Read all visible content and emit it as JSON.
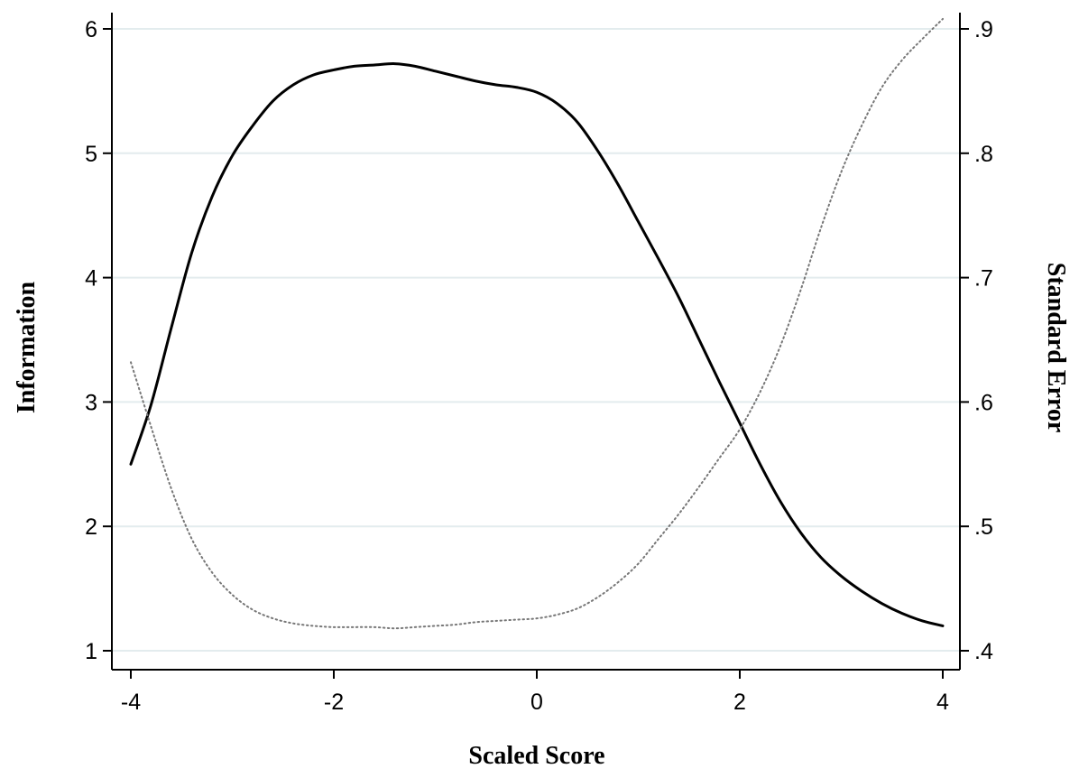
{
  "chart_data": {
    "type": "line",
    "title": "",
    "xlabel": "Scaled Score",
    "ylabel_left": "Information",
    "ylabel_right": "Standard Error",
    "xlim": [
      -4,
      4
    ],
    "ylim_left": [
      1,
      6
    ],
    "ylim_right": [
      0.4,
      0.9
    ],
    "xticks": [
      -4,
      -2,
      0,
      2,
      4
    ],
    "xtick_labels": [
      "-4",
      "-2",
      "0",
      "2",
      "4"
    ],
    "yticks_left": [
      1,
      2,
      3,
      4,
      5,
      6
    ],
    "ytick_labels_left": [
      "1",
      "2",
      "3",
      "4",
      "5",
      "6"
    ],
    "yticks_right": [
      0.4,
      0.5,
      0.6,
      0.7,
      0.8,
      0.9
    ],
    "ytick_labels_right": [
      ".4",
      ".5",
      ".6",
      ".7",
      ".8",
      ".9"
    ],
    "grid": true,
    "legend": "none",
    "series": [
      {
        "axis": "left",
        "style": "solid",
        "color": "#000000",
        "x": [
          -4,
          -3.8,
          -3.6,
          -3.4,
          -3.2,
          -3.0,
          -2.8,
          -2.6,
          -2.4,
          -2.2,
          -2.0,
          -1.8,
          -1.6,
          -1.4,
          -1.2,
          -1.0,
          -0.8,
          -0.6,
          -0.4,
          -0.2,
          0.0,
          0.2,
          0.4,
          0.6,
          0.8,
          1.0,
          1.2,
          1.4,
          1.6,
          1.8,
          2.0,
          2.2,
          2.4,
          2.6,
          2.8,
          3.0,
          3.2,
          3.4,
          3.6,
          3.8,
          4.0
        ],
        "values": [
          2.5,
          2.98,
          3.6,
          4.2,
          4.65,
          4.98,
          5.22,
          5.42,
          5.55,
          5.63,
          5.67,
          5.7,
          5.71,
          5.72,
          5.7,
          5.66,
          5.62,
          5.58,
          5.55,
          5.53,
          5.49,
          5.4,
          5.25,
          5.02,
          4.75,
          4.45,
          4.15,
          3.84,
          3.5,
          3.16,
          2.83,
          2.5,
          2.2,
          1.95,
          1.75,
          1.6,
          1.48,
          1.38,
          1.3,
          1.24,
          1.2
        ]
      },
      {
        "axis": "right",
        "style": "dotted",
        "color": "#777777",
        "x": [
          -4,
          -3.8,
          -3.6,
          -3.4,
          -3.2,
          -3.0,
          -2.8,
          -2.6,
          -2.4,
          -2.2,
          -2.0,
          -1.8,
          -1.6,
          -1.4,
          -1.2,
          -1.0,
          -0.8,
          -0.6,
          -0.4,
          -0.2,
          0.0,
          0.2,
          0.4,
          0.6,
          0.8,
          1.0,
          1.2,
          1.4,
          1.6,
          1.8,
          2.0,
          2.2,
          2.4,
          2.6,
          2.8,
          3.0,
          3.2,
          3.4,
          3.6,
          3.8,
          4.0
        ],
        "values": [
          0.632,
          0.58,
          0.53,
          0.49,
          0.463,
          0.445,
          0.433,
          0.426,
          0.422,
          0.42,
          0.419,
          0.419,
          0.419,
          0.418,
          0.419,
          0.42,
          0.421,
          0.423,
          0.424,
          0.425,
          0.426,
          0.429,
          0.434,
          0.443,
          0.455,
          0.47,
          0.49,
          0.51,
          0.532,
          0.555,
          0.578,
          0.608,
          0.645,
          0.69,
          0.74,
          0.785,
          0.822,
          0.853,
          0.875,
          0.892,
          0.908
        ]
      }
    ]
  }
}
